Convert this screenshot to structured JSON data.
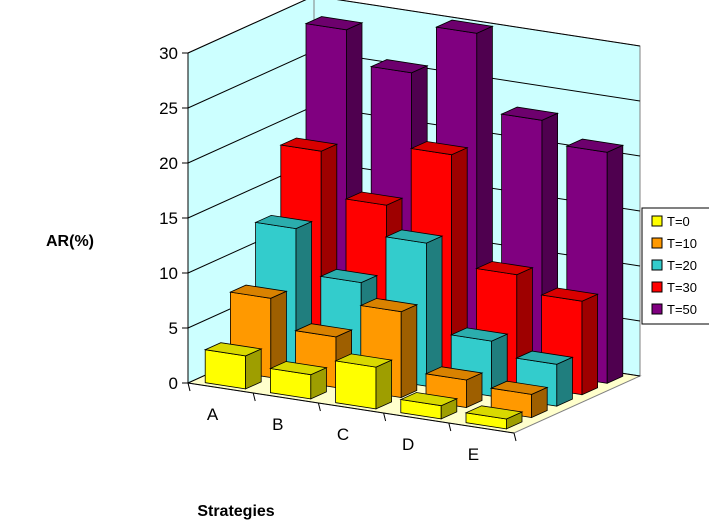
{
  "chart_data": {
    "type": "bar",
    "subtype": "3d-column",
    "title": "",
    "xlabel": "Strategies",
    "ylabel": "AR(%)",
    "ylim": [
      0,
      30
    ],
    "yticks": [
      "0",
      "5",
      "10",
      "15",
      "20",
      "25",
      "30"
    ],
    "grid": true,
    "legend_position": "right",
    "categories": [
      "A",
      "B",
      "C",
      "D",
      "E"
    ],
    "series": [
      {
        "name": "T=0",
        "color": "#FFFF00",
        "values": [
          3.0,
          2.2,
          3.8,
          1.2,
          0.9
        ]
      },
      {
        "name": "T=10",
        "color": "#FF9900",
        "values": [
          7.2,
          4.6,
          7.8,
          2.5,
          2.1
        ]
      },
      {
        "name": "T=20",
        "color": "#33CCCC",
        "values": [
          12.5,
          8.5,
          13.0,
          5.0,
          3.8
        ]
      },
      {
        "name": "T=30",
        "color": "#FF0000",
        "values": [
          18.5,
          14.5,
          20.0,
          10.0,
          8.5
        ]
      },
      {
        "name": "T=50",
        "color": "#800080",
        "values": [
          28.5,
          25.5,
          30.0,
          23.0,
          21.0
        ]
      }
    ],
    "colors": {
      "wall_back": "#CCFFFF",
      "floor": "#FFFFCC",
      "gridline": "#000000"
    }
  }
}
